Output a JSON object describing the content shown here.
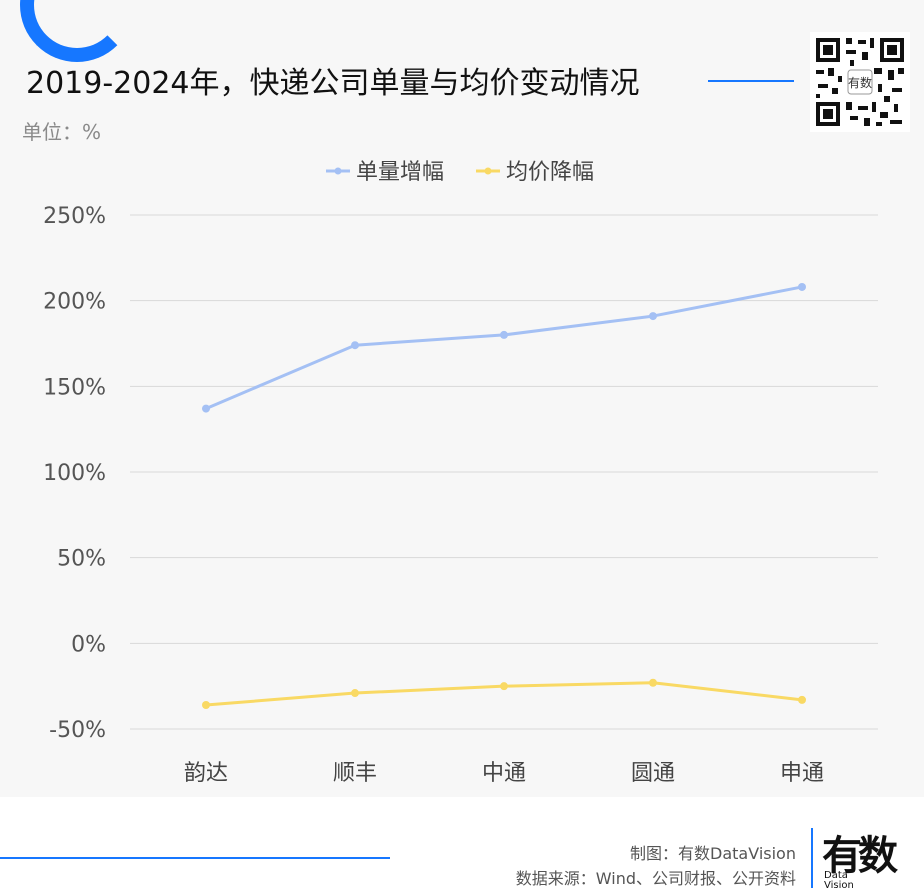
{
  "header": {
    "title": "2019-2024年，快递公司单量与均价变动情况",
    "unit": "单位：%"
  },
  "footer": {
    "credit_line1": "制图：有数DataVision",
    "credit_line2": "数据来源：Wind、公司财报、公开资料",
    "logo_text": "有数",
    "logo_sub1": "Data",
    "logo_sub2": "Vision"
  },
  "colors": {
    "accent": "#1677ff",
    "series1": "#a4c0f4",
    "series2": "#f9d964",
    "grid": "#d9d9d9"
  },
  "chart_data": {
    "type": "line",
    "categories": [
      "韵达",
      "顺丰",
      "中通",
      "圆通",
      "申通"
    ],
    "series": [
      {
        "name": "单量增幅",
        "values": [
          137,
          174,
          180,
          191,
          208
        ]
      },
      {
        "name": "均价降幅",
        "values": [
          -36,
          -29,
          -25,
          -23,
          -33
        ]
      }
    ],
    "yticks": [
      "250%",
      "200%",
      "150%",
      "100%",
      "50%",
      "0%",
      "-50%"
    ],
    "ylim": [
      -50,
      250
    ],
    "grid": true,
    "legend": "top-center"
  }
}
